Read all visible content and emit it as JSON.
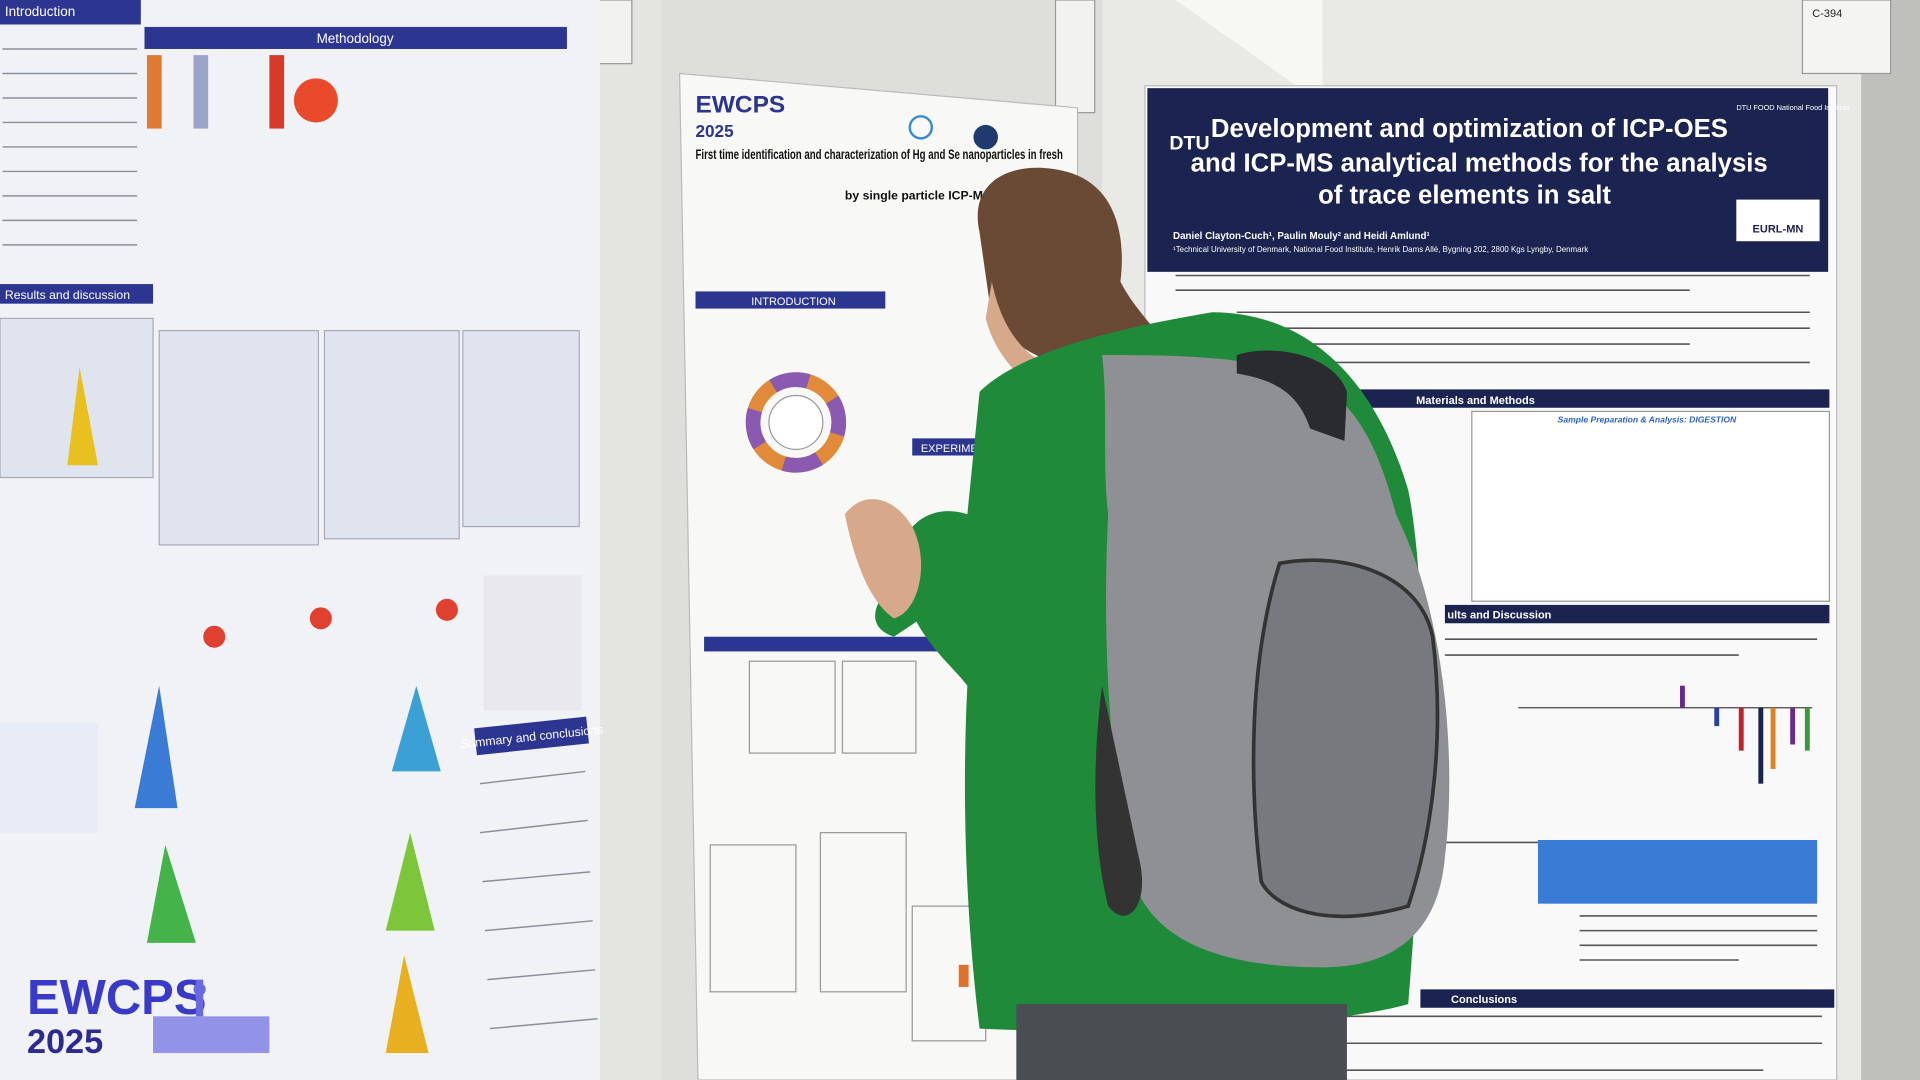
{
  "left_poster": {
    "sections": [
      "Introduction",
      "Methodology",
      "Results and discussion",
      "Summary and conclusions"
    ]
  },
  "middle_poster": {
    "logo": "EWCPS",
    "year": "2025",
    "title_line1": "First time identification and characterization of Hg and Se nanoparticles in fresh",
    "title_line2": "by single particle ICP-MS",
    "sections": [
      "INTRODUCTION",
      "EXPERIMEN"
    ]
  },
  "right_poster": {
    "tag": "C-394",
    "institute_short": "DTU",
    "institute": "DTU FOOD National Food Institute",
    "title_line1": "Development and optimization of ICP-OES",
    "title_line2": "and ICP-MS analytical methods for the analysis",
    "title_line3": "of trace elements in salt",
    "authors": "Daniel Clayton-Cuch¹, Paulin Mouly² and Heidi Amlund¹",
    "affiliation": "¹Technical University of Denmark, National Food Institute, Henrik Dams Allé, Bygning 202, 2800 Kgs Lyngby, Denmark",
    "badge": "EURL-MN",
    "sections": [
      "Materials and Methods",
      "ults and Discussion",
      "Conclusions"
    ],
    "subsection": "Sample Preparation & Analysis: DIGESTION"
  },
  "watermark": {
    "line1": "EWCPS",
    "line2": "2025"
  }
}
